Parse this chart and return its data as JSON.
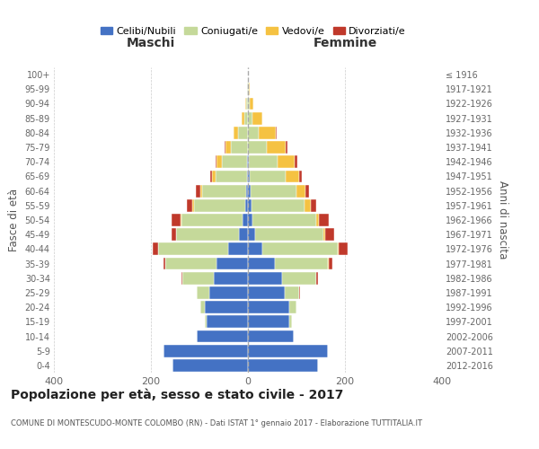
{
  "age_groups": [
    "0-4",
    "5-9",
    "10-14",
    "15-19",
    "20-24",
    "25-29",
    "30-34",
    "35-39",
    "40-44",
    "45-49",
    "50-54",
    "55-59",
    "60-64",
    "65-69",
    "70-74",
    "75-79",
    "80-84",
    "85-89",
    "90-94",
    "95-99",
    "100+"
  ],
  "birth_years": [
    "2012-2016",
    "2007-2011",
    "2002-2006",
    "1997-2001",
    "1992-1996",
    "1987-1991",
    "1982-1986",
    "1977-1981",
    "1972-1976",
    "1967-1971",
    "1962-1966",
    "1957-1961",
    "1952-1956",
    "1947-1951",
    "1942-1946",
    "1937-1941",
    "1932-1936",
    "1927-1931",
    "1922-1926",
    "1917-1921",
    "≤ 1916"
  ],
  "male_celibi": [
    155,
    175,
    105,
    85,
    88,
    80,
    70,
    65,
    40,
    18,
    12,
    6,
    4,
    2,
    2,
    0,
    0,
    0,
    0,
    0,
    0
  ],
  "male_coniugati": [
    0,
    0,
    0,
    3,
    10,
    25,
    65,
    105,
    145,
    130,
    125,
    105,
    90,
    65,
    52,
    35,
    20,
    8,
    3,
    1,
    0
  ],
  "male_vedovi": [
    0,
    0,
    0,
    0,
    0,
    0,
    0,
    0,
    1,
    1,
    2,
    3,
    5,
    8,
    10,
    12,
    10,
    5,
    2,
    0,
    0
  ],
  "male_divorziati": [
    0,
    0,
    0,
    0,
    0,
    0,
    2,
    5,
    10,
    8,
    18,
    12,
    8,
    3,
    2,
    2,
    0,
    0,
    0,
    0,
    0
  ],
  "female_nubili": [
    145,
    165,
    95,
    85,
    85,
    75,
    70,
    55,
    30,
    15,
    10,
    7,
    5,
    3,
    2,
    0,
    0,
    0,
    0,
    0,
    0
  ],
  "female_coniugate": [
    0,
    0,
    0,
    5,
    15,
    30,
    70,
    110,
    155,
    140,
    130,
    110,
    95,
    75,
    60,
    38,
    22,
    10,
    4,
    1,
    0
  ],
  "female_vedove": [
    0,
    0,
    0,
    0,
    0,
    0,
    0,
    1,
    2,
    4,
    6,
    12,
    18,
    28,
    35,
    40,
    35,
    20,
    8,
    2,
    0
  ],
  "female_divorziate": [
    0,
    0,
    0,
    0,
    0,
    2,
    4,
    8,
    18,
    18,
    20,
    12,
    8,
    5,
    4,
    3,
    2,
    0,
    0,
    0,
    0
  ],
  "colors": {
    "celibi": "#4472c4",
    "coniugati": "#c5d99a",
    "vedovi": "#f5c242",
    "divorziati": "#c0392b"
  },
  "title": "Popolazione per età, sesso e stato civile - 2017",
  "subtitle": "COMUNE DI MONTESCUDO-MONTE COLOMBO (RN) - Dati ISTAT 1° gennaio 2017 - Elaborazione TUTTITALIA.IT",
  "xlabel_left": "Maschi",
  "xlabel_right": "Femmine",
  "ylabel_left": "Fasce di età",
  "ylabel_right": "Anni di nascita",
  "xlim": 400,
  "legend_labels": [
    "Celibi/Nubili",
    "Coniugati/e",
    "Vedovi/e",
    "Divorziati/e"
  ],
  "bg_color": "#ffffff",
  "grid_color": "#cccccc"
}
